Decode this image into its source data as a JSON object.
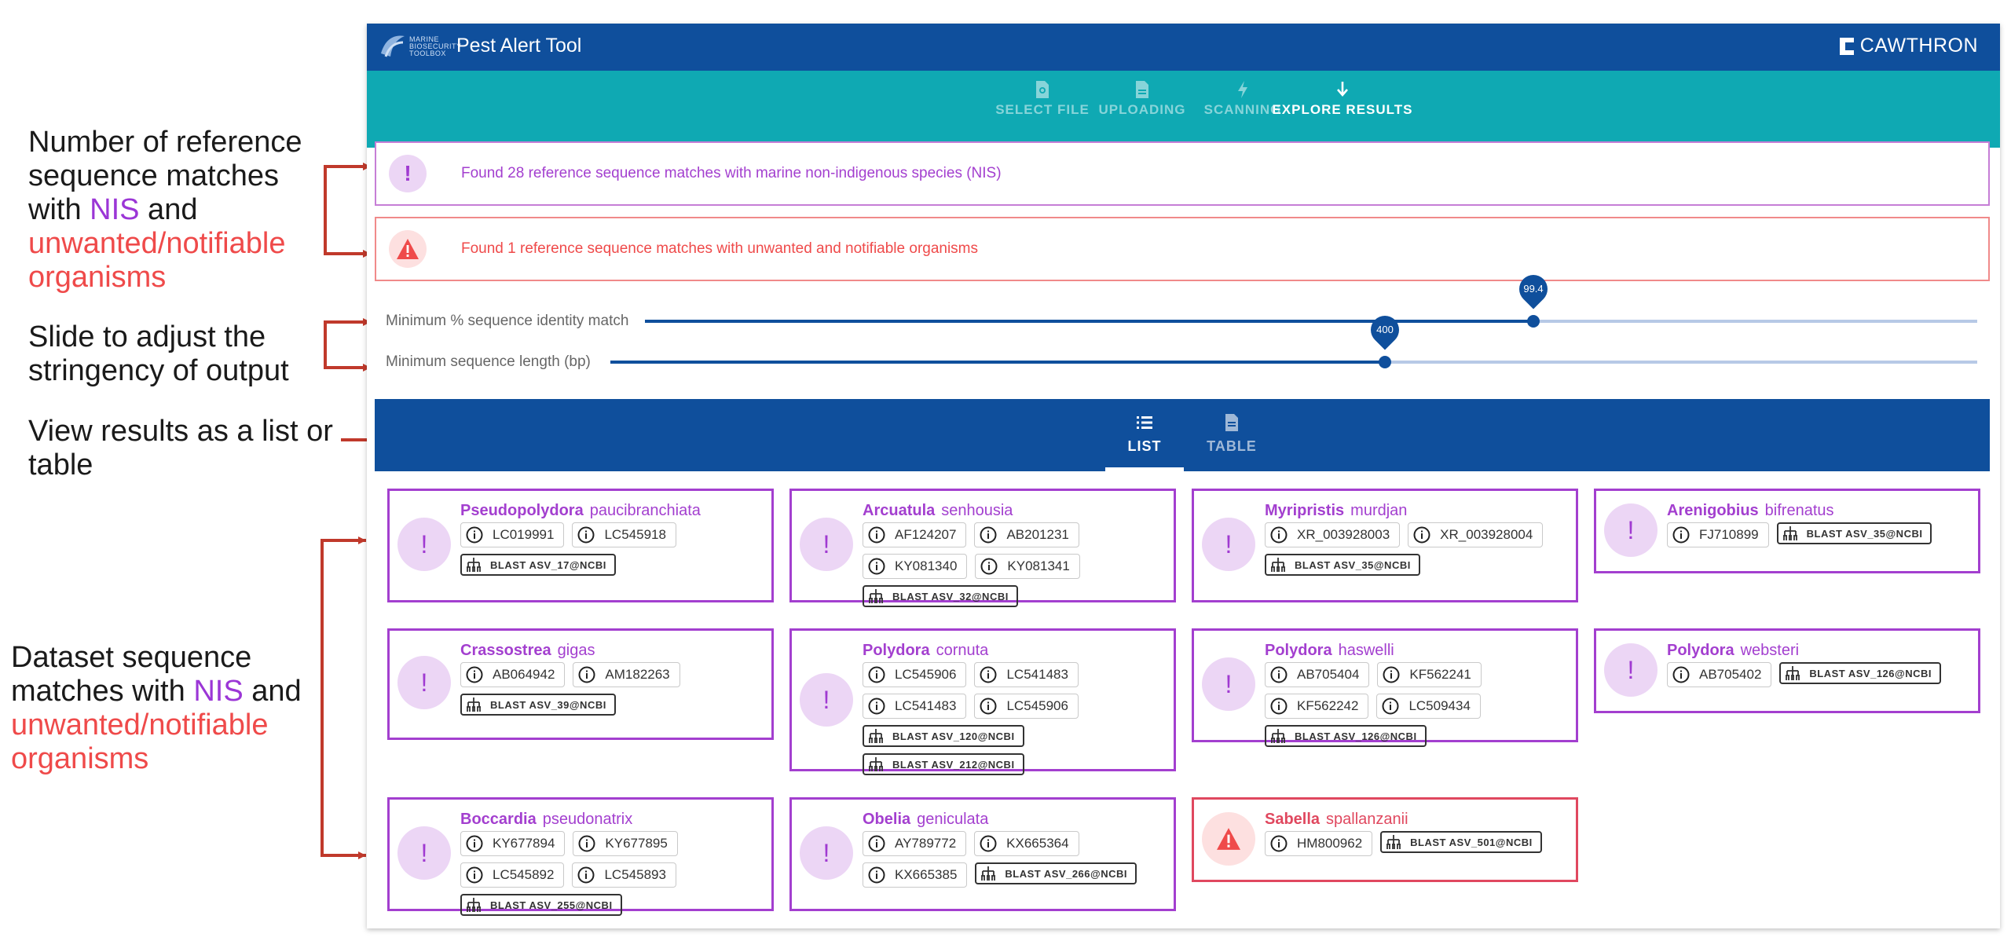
{
  "annotations": {
    "matches": {
      "line1": "Number of reference",
      "line2": "sequence matches",
      "line3_pre": "with ",
      "line3_nis": "NIS",
      "line3_post": " and",
      "line4": "unwanted/notifiable",
      "line5": "organisms"
    },
    "slider": {
      "line1": "Slide to adjust the",
      "line2": "stringency of output"
    },
    "view": {
      "line1": "View results as a list or",
      "line2": "table"
    },
    "dataset": {
      "line1": "Dataset sequence",
      "line2_pre": "matches with ",
      "line2_nis": "NIS",
      "line2_post": " and",
      "line3": "unwanted/notifiable",
      "line4": "organisms"
    }
  },
  "header": {
    "logo_lines": [
      "MARINE",
      "BIOSECURITY",
      "TOOLBOX"
    ],
    "title": "Pest Alert Tool",
    "brand": "CAWTHRON"
  },
  "stepper": {
    "steps": [
      {
        "label": "SELECT FILE",
        "icon": "file-search-icon"
      },
      {
        "label": "UPLOADING",
        "icon": "file-icon"
      },
      {
        "label": "SCANNING",
        "icon": "bolt-icon"
      },
      {
        "label": "EXPLORE RESULTS",
        "icon": "arrow-down-icon"
      }
    ],
    "active": "EXPLORE RESULTS"
  },
  "alerts": {
    "nis": {
      "symbol": "!",
      "text": "Found 28 reference sequence matches with marine non-indigenous species (NIS)"
    },
    "unwanted": {
      "text": "Found 1 reference sequence matches with unwanted and notifiable organisms"
    }
  },
  "sliders": {
    "identity": {
      "label": "Minimum % sequence identity match",
      "value": "99.4"
    },
    "length": {
      "label": "Minimum sequence length (bp)",
      "value": "400"
    }
  },
  "view_tabs": {
    "list": "LIST",
    "table": "TABLE",
    "active": "LIST"
  },
  "cards": [
    {
      "genus": "Pseudopolydora",
      "species": "paucibranchiata",
      "type": "nis",
      "accessions": [
        "LC019991",
        "LC545918"
      ],
      "blast": "BLAST ASV_17@NCBI"
    },
    {
      "genus": "Arcuatula",
      "species": "senhousia",
      "type": "nis",
      "accessions": [
        "AF124207",
        "AB201231",
        "KY081340",
        "KY081341"
      ],
      "blast": "BLAST ASV_32@NCBI"
    },
    {
      "genus": "Myripristis",
      "species": "murdjan",
      "type": "nis",
      "accessions": [
        "XR_003928003",
        "XR_003928004"
      ],
      "blast": "BLAST ASV_35@NCBI"
    },
    {
      "genus": "Arenigobius",
      "species": "bifrenatus",
      "type": "nis",
      "accessions": [
        "FJ710899"
      ],
      "blast": "BLAST ASV_35@NCBI"
    },
    {
      "genus": "Crassostrea",
      "species": "gigas",
      "type": "nis",
      "accessions": [
        "AB064942",
        "AM182263"
      ],
      "blast": "BLAST ASV_39@NCBI"
    },
    {
      "genus": "Polydora",
      "species": "cornuta",
      "type": "nis",
      "accessions": [
        "LC545906",
        "LC541483",
        "LC541483",
        "LC545906"
      ],
      "blast": "BLAST ASV_120@NCBI",
      "blast2": "BLAST ASV_212@NCBI"
    },
    {
      "genus": "Polydora",
      "species": "haswelli",
      "type": "nis",
      "accessions": [
        "AB705404",
        "KF562241",
        "KF562242",
        "LC509434"
      ],
      "blast": "BLAST ASV_126@NCBI"
    },
    {
      "genus": "Polydora",
      "species": "websteri",
      "type": "nis",
      "accessions": [
        "AB705402"
      ],
      "blast": "BLAST ASV_126@NCBI"
    },
    {
      "genus": "Boccardia",
      "species": "pseudonatrix",
      "type": "nis",
      "accessions": [
        "KY677894",
        "KY677895",
        "LC545892",
        "LC545893"
      ],
      "blast": "BLAST ASV_255@NCBI"
    },
    {
      "genus": "Obelia",
      "species": "geniculata",
      "type": "nis",
      "accessions": [
        "AY789772",
        "KX665364",
        "KX665385"
      ],
      "blast": "BLAST ASV_266@NCBI"
    },
    {
      "genus": "Sabella",
      "species": "spallanzanii",
      "type": "unwanted",
      "accessions": [
        "HM800962"
      ],
      "blast": "BLAST ASV_501@NCBI"
    }
  ],
  "colors": {
    "header": "#0f4f9c",
    "stepper": "#0fa9b3",
    "nis": "#a33fcf",
    "unwanted": "#e0485f",
    "arrow": "#c0392b"
  }
}
